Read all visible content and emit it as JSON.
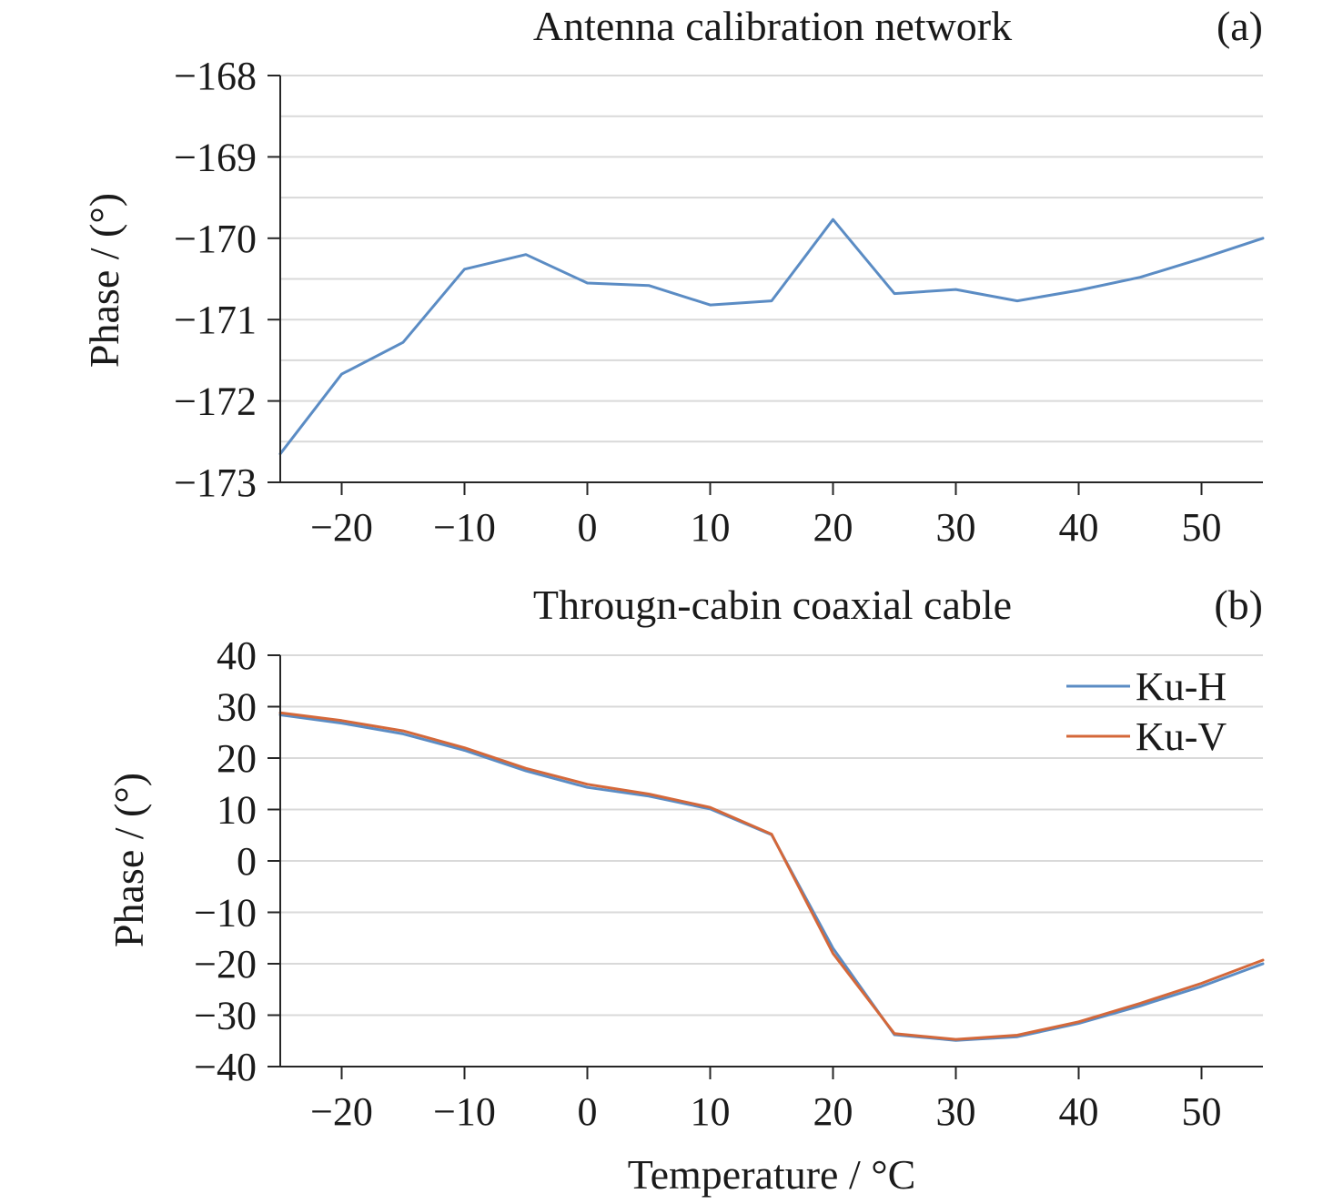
{
  "chart_data": [
    {
      "type": "line",
      "title": "Antenna calibration network",
      "panel_label": "(a)",
      "ylabel": "Phase / (°)",
      "xlabel": "",
      "ylim": [
        -173,
        -168
      ],
      "xlim": [
        -25,
        55
      ],
      "x_ticks": [
        "−20",
        "−10",
        "0",
        "10",
        "20",
        "30",
        "40",
        "50"
      ],
      "x_tick_values": [
        -20,
        -10,
        0,
        10,
        20,
        30,
        40,
        50
      ],
      "y_ticks": [
        "−168",
        "−169",
        "−170",
        "−171",
        "−172",
        "−173"
      ],
      "y_tick_values": [
        -168,
        -169,
        -170,
        -171,
        -172,
        -173
      ],
      "grid": "horizontal, every 0.5",
      "x": [
        -25,
        -20,
        -15,
        -10,
        -5,
        0,
        5,
        10,
        15,
        20,
        25,
        30,
        35,
        40,
        45,
        50,
        55
      ],
      "series": [
        {
          "color": "#5b8cc4",
          "values": [
            -172.65,
            -171.67,
            -171.28,
            -170.38,
            -170.2,
            -170.55,
            -170.58,
            -170.82,
            -170.77,
            -169.77,
            -170.68,
            -170.63,
            -170.77,
            -170.64,
            -170.48,
            -170.25,
            -170.0
          ]
        }
      ]
    },
    {
      "type": "line",
      "title": "Througn-cabin coaxial cable",
      "panel_label": "(b)",
      "ylabel": "Phase / (°)",
      "xlabel": "Temperature / °C",
      "ylim": [
        -40,
        40
      ],
      "xlim": [
        -25,
        55
      ],
      "x_ticks": [
        "−20",
        "−10",
        "0",
        "10",
        "20",
        "30",
        "40",
        "50"
      ],
      "x_tick_values": [
        -20,
        -10,
        0,
        10,
        20,
        30,
        40,
        50
      ],
      "y_ticks": [
        "40",
        "30",
        "20",
        "10",
        "0",
        "−10",
        "−20",
        "−30",
        "−40"
      ],
      "y_tick_values": [
        40,
        30,
        20,
        10,
        0,
        -10,
        -20,
        -30,
        -40
      ],
      "grid": "horizontal, every 10",
      "legend_position": "top-right",
      "x": [
        -25,
        -20,
        -15,
        -10,
        -5,
        0,
        5,
        10,
        15,
        20,
        25,
        30,
        35,
        40,
        45,
        50,
        55
      ],
      "series": [
        {
          "name": "Ku-H",
          "color": "#5b8cc4",
          "values": [
            28.4,
            26.8,
            24.7,
            21.5,
            17.5,
            14.3,
            12.6,
            10.1,
            5.1,
            -17.0,
            -33.8,
            -34.9,
            -34.2,
            -31.6,
            -28.2,
            -24.4,
            -20.0
          ]
        },
        {
          "name": "Ku-V",
          "color": "#d4683a",
          "values": [
            28.8,
            27.3,
            25.3,
            22.0,
            18.0,
            14.9,
            13.0,
            10.4,
            5.2,
            -18.0,
            -33.6,
            -34.7,
            -33.9,
            -31.3,
            -27.7,
            -23.8,
            -19.3
          ]
        }
      ]
    }
  ]
}
